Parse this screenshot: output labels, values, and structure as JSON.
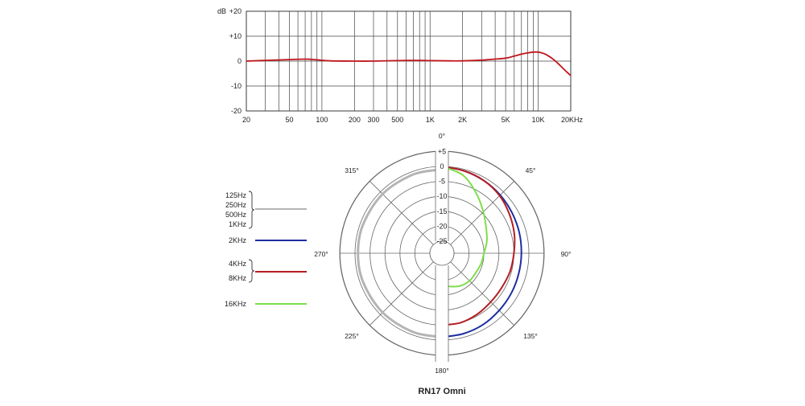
{
  "chart_data": [
    {
      "type": "line",
      "title": "",
      "ylabel": "dB",
      "xlabel": "",
      "x_scale": "log",
      "xlim": [
        20,
        20000
      ],
      "ylim": [
        -20,
        20
      ],
      "grid": true,
      "y_ticks": [
        {
          "value": 20,
          "label": "+20"
        },
        {
          "value": 10,
          "label": "+10"
        },
        {
          "value": 0,
          "label": "0"
        },
        {
          "value": -10,
          "label": "-10"
        },
        {
          "value": -20,
          "label": "-20"
        }
      ],
      "x_ticks": [
        {
          "value": 20,
          "label": "20"
        },
        {
          "value": 50,
          "label": "50"
        },
        {
          "value": 100,
          "label": "100"
        },
        {
          "value": 200,
          "label": "200"
        },
        {
          "value": 300,
          "label": "300"
        },
        {
          "value": 500,
          "label": "500"
        },
        {
          "value": 1000,
          "label": "1K"
        },
        {
          "value": 2000,
          "label": "2K"
        },
        {
          "value": 5000,
          "label": "5K"
        },
        {
          "value": 10000,
          "label": "10K"
        },
        {
          "value": 20000,
          "label": "20KHz"
        }
      ],
      "series": [
        {
          "color": "#c0161c",
          "x": [
            20,
            30,
            50,
            70,
            90,
            120,
            200,
            300,
            500,
            800,
            1000,
            1500,
            2000,
            3000,
            4000,
            5000,
            6000,
            7000,
            8000,
            9000,
            10000,
            11000,
            12000,
            14000,
            16000,
            18000,
            20000
          ],
          "y": [
            0,
            0.3,
            0.6,
            0.8,
            0.5,
            0.1,
            0,
            0,
            0.2,
            0.3,
            0.2,
            0.1,
            0.1,
            0.4,
            0.8,
            1.2,
            2.0,
            2.8,
            3.3,
            3.6,
            3.6,
            3.2,
            2.5,
            0.5,
            -1.8,
            -4.0,
            -5.8
          ]
        }
      ]
    },
    {
      "type": "polar",
      "title": "RN17 Omni",
      "rlim": [
        -25,
        5
      ],
      "ring_labels": [
        "+5",
        "0",
        "-5",
        "-10",
        "-15",
        "-20",
        "-25"
      ],
      "ring_values": [
        5,
        0,
        -5,
        -10,
        -15,
        -20,
        -25
      ],
      "angle_labels": [
        {
          "angle": 0,
          "label": "0°"
        },
        {
          "angle": 45,
          "label": "45°"
        },
        {
          "angle": 90,
          "label": "90°"
        },
        {
          "angle": 135,
          "label": "135°"
        },
        {
          "angle": 180,
          "label": "180°"
        },
        {
          "angle": 225,
          "label": "225°"
        },
        {
          "angle": 270,
          "label": "270°"
        },
        {
          "angle": 315,
          "label": "315°"
        }
      ],
      "series": [
        {
          "legend": [
            "125Hz",
            "250Hz",
            "500Hz",
            "1KHz"
          ],
          "color": "#b4b4b4",
          "angles": [
            180,
            200,
            225,
            250,
            270,
            290,
            315,
            340,
            360
          ],
          "values": [
            -1,
            -1,
            -1,
            -1,
            -1,
            -1,
            -1,
            -1,
            -1
          ]
        },
        {
          "legend": [
            "2KHz"
          ],
          "color": "#1c2ea0",
          "angles": [
            0,
            15,
            30,
            45,
            60,
            75,
            90,
            105,
            120,
            135,
            150,
            165,
            180
          ],
          "values": [
            0,
            -0.5,
            -1.0,
            -1.5,
            -2.0,
            -2.3,
            -2.5,
            -2.5,
            -2.3,
            -2.0,
            -1.5,
            -1.2,
            -1.0
          ]
        },
        {
          "legend": [
            "4KHz",
            "8KHz"
          ],
          "color": "#b41e23",
          "angles": [
            0,
            15,
            30,
            45,
            60,
            75,
            90,
            105,
            120,
            135,
            150,
            165,
            180
          ],
          "values": [
            0,
            -0.5,
            -1.0,
            -1.8,
            -3.0,
            -4.0,
            -5.0,
            -5.5,
            -6.0,
            -6.0,
            -5.5,
            -5.0,
            -5.0
          ]
        },
        {
          "legend": [
            "16KHz"
          ],
          "color": "#7dde4a",
          "angles": [
            0,
            15,
            30,
            45,
            60,
            75,
            90,
            105,
            120,
            135,
            150,
            165,
            180
          ],
          "values": [
            0,
            -2.0,
            -6.0,
            -9.5,
            -12.0,
            -13.5,
            -15.0,
            -15.5,
            -16.0,
            -16.0,
            -16.5,
            -17.5,
            -18.5
          ]
        }
      ]
    }
  ]
}
